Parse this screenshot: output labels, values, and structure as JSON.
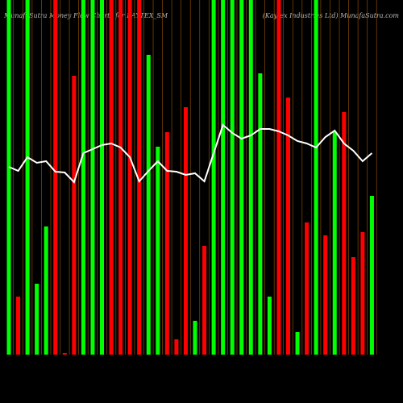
{
  "chart_data": {
    "type": "bar",
    "title": "MunafaSutra Money Flow Charts for KAYTEX_SM",
    "subtitle": "(Kaytex Industries Ltd) MunafaSutra.com",
    "values": [
      440,
      72,
      440,
      88,
      159,
      440,
      2,
      346,
      440,
      440,
      440,
      440,
      440,
      440,
      440,
      372,
      258,
      276,
      19,
      307,
      42,
      135,
      440,
      440,
      440,
      440,
      440,
      349,
      72,
      440,
      319,
      28,
      164,
      440,
      148,
      276,
      301,
      121,
      152,
      197
    ],
    "colors": [
      "#00ff00",
      "#ff0000",
      "#00ff00",
      "#00ff00",
      "#00ff00",
      "#ff0000",
      "#ff0000",
      "#ff0000",
      "#00ff00",
      "#00ff00",
      "#00ff00",
      "#ff0000",
      "#ff0000",
      "#ff0000",
      "#ff0000",
      "#00ff00",
      "#00ff00",
      "#ff0000",
      "#ff0000",
      "#ff0000",
      "#00ff00",
      "#ff0000",
      "#00ff00",
      "#00ff00",
      "#00ff00",
      "#00ff00",
      "#00ff00",
      "#00ff00",
      "#00ff00",
      "#ff0000",
      "#ff0000",
      "#00ff00",
      "#ff0000",
      "#00ff00",
      "#ff0000",
      "#00ff00",
      "#ff0000",
      "#ff0000",
      "#ff0000",
      "#00ff00"
    ],
    "line": {
      "color": "#ffffff",
      "values": [
        233,
        228,
        245,
        238,
        240,
        227,
        226,
        214,
        250,
        255,
        260,
        262,
        257,
        245,
        215,
        228,
        240,
        228,
        227,
        223,
        225,
        215,
        250,
        285,
        275,
        268,
        272,
        280,
        280,
        277,
        272,
        265,
        262,
        257,
        270,
        278,
        262,
        253,
        240,
        250
      ]
    },
    "ylim": [
      0,
      440
    ]
  }
}
